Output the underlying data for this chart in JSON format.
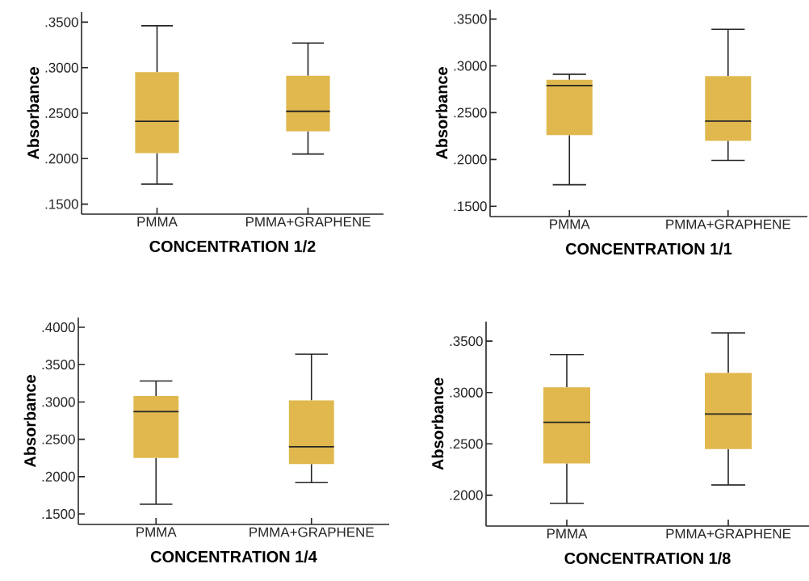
{
  "chart_data": [
    {
      "type": "box",
      "categories": [
        "PMMA",
        "PMMA+GRAPHENE"
      ],
      "xlabel": "CONCENTRATION 1/2",
      "ylabel": "Absorbance",
      "ylim": [
        0.139,
        0.361
      ],
      "yticks": [
        {
          "value": 0.15,
          "label": ".1500"
        },
        {
          "value": 0.2,
          "label": ".2000"
        },
        {
          "value": 0.25,
          "label": ".2500"
        },
        {
          "value": 0.3,
          "label": ".3000"
        },
        {
          "value": 0.35,
          "label": ".3500"
        }
      ],
      "series": [
        {
          "color": "#e0b84e",
          "boxes": [
            {
              "low": 0.172,
              "q1": 0.206,
              "median": 0.241,
              "q3": 0.295,
              "high": 0.346
            },
            {
              "low": 0.205,
              "q1": 0.23,
              "median": 0.252,
              "q3": 0.291,
              "high": 0.327
            }
          ]
        }
      ]
    },
    {
      "type": "box",
      "categories": [
        "PMMA",
        "PMMA+GRAPHENE"
      ],
      "xlabel": "CONCENTRATION 1/1",
      "ylabel": "Absorbance",
      "ylim": [
        0.139,
        0.36
      ],
      "yticks": [
        {
          "value": 0.15,
          "label": ".1500"
        },
        {
          "value": 0.2,
          "label": ".2000"
        },
        {
          "value": 0.25,
          "label": ".2500"
        },
        {
          "value": 0.3,
          "label": ".3000"
        },
        {
          "value": 0.35,
          "label": ".3500"
        }
      ],
      "series": [
        {
          "color": "#e0b84e",
          "boxes": [
            {
              "low": 0.173,
              "q1": 0.226,
              "median": 0.279,
              "q3": 0.285,
              "high": 0.291
            },
            {
              "low": 0.199,
              "q1": 0.22,
              "median": 0.241,
              "q3": 0.289,
              "high": 0.339
            }
          ]
        }
      ]
    },
    {
      "type": "box",
      "categories": [
        "PMMA",
        "PMMA+GRAPHENE"
      ],
      "xlabel": "CONCENTRATION 1/4",
      "ylabel": "Absorbance",
      "ylim": [
        0.136,
        0.413
      ],
      "yticks": [
        {
          "value": 0.15,
          "label": ".1500"
        },
        {
          "value": 0.2,
          "label": ".2000"
        },
        {
          "value": 0.25,
          "label": ".2500"
        },
        {
          "value": 0.3,
          "label": ".3000"
        },
        {
          "value": 0.35,
          "label": ".3500"
        },
        {
          "value": 0.4,
          "label": ".4000"
        }
      ],
      "series": [
        {
          "color": "#e0b84e",
          "boxes": [
            {
              "low": 0.163,
              "q1": 0.225,
              "median": 0.287,
              "q3": 0.308,
              "high": 0.328
            },
            {
              "low": 0.192,
              "q1": 0.217,
              "median": 0.24,
              "q3": 0.302,
              "high": 0.364
            }
          ]
        }
      ]
    },
    {
      "type": "box",
      "categories": [
        "PMMA",
        "PMMA+GRAPHENE"
      ],
      "xlabel": "CONCENTRATION 1/8",
      "ylabel": "Absorbance",
      "ylim": [
        0.17,
        0.369
      ],
      "yticks": [
        {
          "value": 0.2,
          "label": ".2000"
        },
        {
          "value": 0.25,
          "label": ".2500"
        },
        {
          "value": 0.3,
          "label": ".3000"
        },
        {
          "value": 0.35,
          "label": ".3500"
        }
      ],
      "series": [
        {
          "color": "#e0b84e",
          "boxes": [
            {
              "low": 0.192,
              "q1": 0.231,
              "median": 0.271,
              "q3": 0.305,
              "high": 0.337
            },
            {
              "low": 0.21,
              "q1": 0.245,
              "median": 0.279,
              "q3": 0.319,
              "high": 0.358
            }
          ]
        }
      ]
    }
  ]
}
